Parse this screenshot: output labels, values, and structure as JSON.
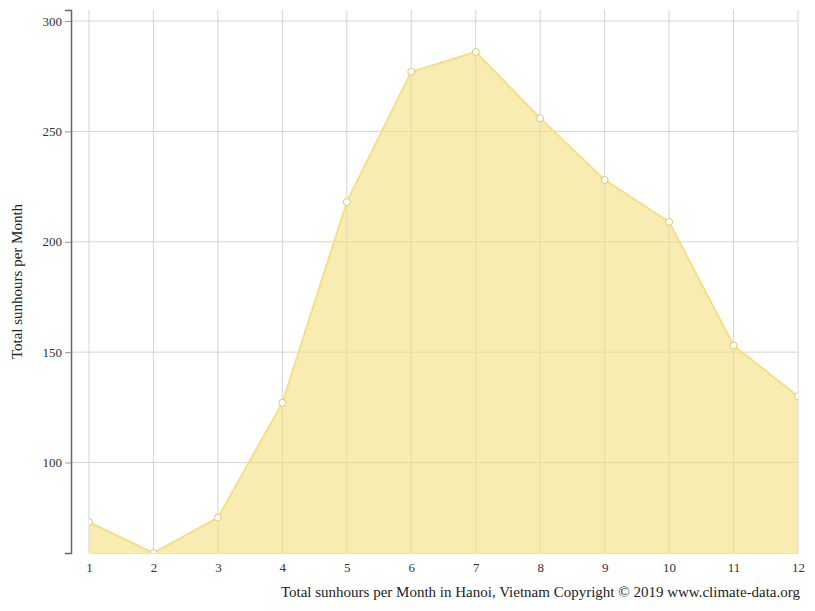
{
  "chart_data": {
    "type": "area",
    "title": "Total sunhours per Month in Hanoi, Vietnam Copyright © 2019 www.climate-data.org",
    "y_label": "Total sunhours per Month",
    "x": [
      1,
      2,
      3,
      4,
      5,
      6,
      7,
      8,
      9,
      10,
      11,
      12
    ],
    "values": [
      73,
      59,
      75,
      127,
      218,
      277,
      286,
      256,
      228,
      209,
      153,
      130
    ],
    "color": "#f5e07e",
    "marker": "circle",
    "xlim": [
      1,
      12
    ],
    "xticks": [
      1,
      2,
      3,
      4,
      5,
      6,
      7,
      8,
      9,
      10,
      11,
      12
    ],
    "ylim": [
      59,
      305
    ],
    "yticks": [
      100,
      150,
      200,
      250,
      300
    ],
    "grid": true
  }
}
